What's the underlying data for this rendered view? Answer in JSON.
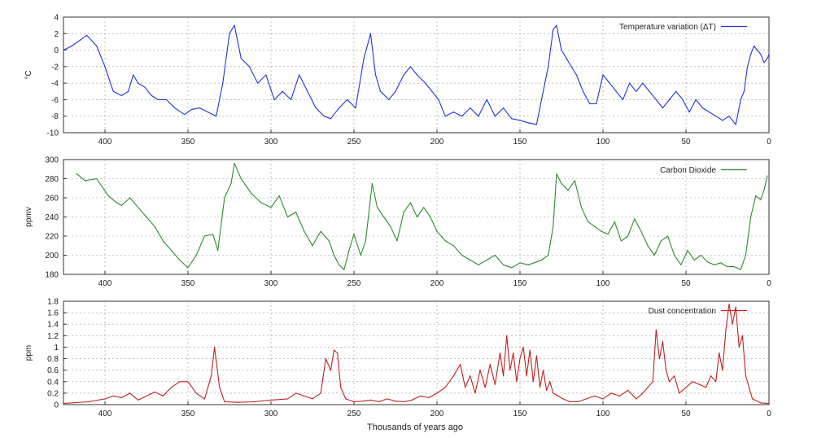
{
  "chart_data": [
    {
      "type": "line",
      "ylabel": "°C",
      "legend": "Temperature variation (ΔT)",
      "color": "#2233dd",
      "xlim": [
        0,
        425
      ],
      "x_reversed": true,
      "ylim": [
        -10,
        4
      ],
      "yticks": [
        4,
        2,
        0,
        -2,
        -4,
        -6,
        -8,
        -10
      ],
      "xticks": [
        400,
        350,
        300,
        250,
        200,
        150,
        100,
        50,
        0
      ],
      "grid": true,
      "legend_position": "top-right",
      "series": [
        {
          "x": [
            425,
            420,
            415,
            411,
            405,
            400,
            395,
            390,
            386,
            383,
            380,
            376,
            372,
            368,
            363,
            358,
            352,
            348,
            343,
            338,
            333,
            329,
            325,
            322,
            318,
            313,
            308,
            303,
            298,
            293,
            288,
            283,
            278,
            273,
            268,
            264,
            259,
            254,
            249,
            244,
            240,
            237,
            234,
            229,
            225,
            220,
            216,
            212,
            207,
            203,
            199,
            195,
            190,
            185,
            180,
            175,
            170,
            165,
            160,
            155,
            150,
            145,
            140,
            137,
            133,
            130,
            128,
            125,
            122,
            119,
            116,
            112,
            108,
            104,
            100,
            96,
            92,
            88,
            84,
            80,
            76,
            72,
            68,
            64,
            60,
            56,
            52,
            48,
            44,
            40,
            36,
            32,
            28,
            24,
            20,
            17,
            15,
            13,
            11,
            9,
            7,
            5,
            3,
            1,
            0
          ],
          "y": [
            0,
            0.5,
            1.2,
            1.8,
            0.5,
            -2,
            -5,
            -5.5,
            -5,
            -3,
            -4,
            -4.5,
            -5.5,
            -6,
            -6,
            -7,
            -7.8,
            -7.2,
            -7,
            -7.5,
            -8,
            -4,
            2,
            3,
            -1,
            -2,
            -4,
            -3,
            -6,
            -5,
            -6,
            -3,
            -5,
            -7,
            -8,
            -8.3,
            -7,
            -6,
            -7,
            -1,
            2,
            -3,
            -5,
            -6,
            -5,
            -3,
            -2,
            -3,
            -4,
            -5,
            -6,
            -8,
            -7.5,
            -8,
            -7,
            -8,
            -6,
            -8,
            -7,
            -8.3,
            -8.5,
            -8.8,
            -9,
            -6,
            -2,
            2.5,
            3,
            0,
            -1,
            -2,
            -3,
            -5,
            -6.5,
            -6.5,
            -3,
            -4,
            -5,
            -6,
            -4,
            -5,
            -4,
            -5,
            -6,
            -7,
            -6,
            -5,
            -6,
            -7.5,
            -6,
            -7,
            -7.5,
            -8,
            -8.5,
            -8,
            -9,
            -6,
            -5,
            -2,
            -0.5,
            0.5,
            0,
            -0.5,
            -1.5,
            -1,
            -0.5
          ]
        }
      ]
    },
    {
      "type": "line",
      "ylabel": "ppmv",
      "legend": "Carbon Dioxide",
      "color": "#2e8b2e",
      "xlim": [
        0,
        425
      ],
      "x_reversed": true,
      "ylim": [
        180,
        300
      ],
      "yticks": [
        300,
        280,
        260,
        240,
        220,
        200,
        180
      ],
      "xticks": [
        400,
        350,
        300,
        250,
        200,
        150,
        100,
        50,
        0
      ],
      "grid": true,
      "legend_position": "top-right",
      "series": [
        {
          "x": [
            417,
            412,
            405,
            398,
            393,
            390,
            385,
            380,
            375,
            370,
            365,
            360,
            355,
            350,
            345,
            340,
            335,
            332,
            328,
            324,
            322,
            318,
            312,
            306,
            300,
            295,
            290,
            285,
            280,
            275,
            270,
            265,
            262,
            259,
            256,
            253,
            250,
            246,
            243,
            239,
            236,
            232,
            228,
            224,
            220,
            216,
            212,
            208,
            204,
            200,
            195,
            190,
            185,
            180,
            175,
            170,
            165,
            160,
            155,
            150,
            145,
            140,
            137,
            133,
            130,
            128,
            125,
            121,
            117,
            113,
            109,
            105,
            101,
            97,
            93,
            89,
            85,
            81,
            77,
            73,
            69,
            65,
            61,
            57,
            53,
            49,
            45,
            41,
            37,
            33,
            29,
            25,
            21,
            17,
            14,
            11,
            8,
            5,
            3,
            1
          ],
          "y": [
            285,
            278,
            280,
            262,
            255,
            252,
            260,
            250,
            240,
            230,
            215,
            205,
            195,
            187,
            200,
            220,
            222,
            205,
            260,
            275,
            296,
            280,
            265,
            255,
            250,
            262,
            240,
            245,
            225,
            210,
            225,
            215,
            200,
            190,
            185,
            205,
            222,
            200,
            215,
            275,
            250,
            240,
            230,
            215,
            245,
            255,
            240,
            250,
            240,
            225,
            215,
            210,
            200,
            195,
            190,
            195,
            200,
            190,
            187,
            192,
            190,
            193,
            195,
            200,
            230,
            285,
            275,
            268,
            278,
            250,
            235,
            230,
            225,
            222,
            235,
            215,
            220,
            238,
            225,
            210,
            200,
            215,
            220,
            200,
            190,
            205,
            195,
            200,
            193,
            190,
            192,
            188,
            188,
            185,
            200,
            240,
            262,
            258,
            268,
            283
          ]
        }
      ]
    },
    {
      "type": "line",
      "ylabel": "ppm",
      "legend": "Dust concentration",
      "xlabel": "Thousands of years ago",
      "color": "#c02020",
      "xlim": [
        0,
        425
      ],
      "x_reversed": true,
      "ylim": [
        0,
        1.8
      ],
      "yticks": [
        1.8,
        1.6,
        1.4,
        1.2,
        1,
        0.8,
        0.6,
        0.4,
        0.2,
        0
      ],
      "xticks": [
        400,
        350,
        300,
        250,
        200,
        150,
        100,
        50,
        0
      ],
      "grid": true,
      "legend_position": "top-right",
      "series": [
        {
          "x": [
            425,
            410,
            400,
            395,
            390,
            385,
            380,
            375,
            370,
            365,
            360,
            355,
            350,
            345,
            340,
            336,
            334,
            331,
            328,
            320,
            310,
            300,
            290,
            285,
            280,
            275,
            270,
            267,
            264,
            262,
            260,
            258,
            255,
            250,
            245,
            240,
            235,
            230,
            225,
            220,
            215,
            210,
            205,
            200,
            195,
            190,
            186,
            183,
            180,
            177,
            174,
            171,
            168,
            165,
            162,
            160,
            158,
            156,
            154,
            152,
            150,
            148,
            146,
            144,
            142,
            140,
            138,
            136,
            134,
            132,
            130,
            127,
            124,
            120,
            115,
            110,
            105,
            100,
            95,
            90,
            85,
            80,
            76,
            73,
            70,
            68,
            66,
            64,
            62,
            60,
            57,
            54,
            50,
            46,
            42,
            38,
            35,
            32,
            30,
            28,
            26,
            24,
            22,
            20,
            18,
            16,
            14,
            10,
            5,
            0
          ],
          "y": [
            0.02,
            0.05,
            0.1,
            0.15,
            0.12,
            0.2,
            0.08,
            0.15,
            0.22,
            0.15,
            0.3,
            0.4,
            0.4,
            0.2,
            0.1,
            0.5,
            1.0,
            0.3,
            0.05,
            0.04,
            0.05,
            0.08,
            0.1,
            0.2,
            0.15,
            0.1,
            0.2,
            0.8,
            0.6,
            0.95,
            0.9,
            0.3,
            0.1,
            0.05,
            0.06,
            0.08,
            0.05,
            0.1,
            0.06,
            0.05,
            0.08,
            0.15,
            0.12,
            0.2,
            0.3,
            0.5,
            0.7,
            0.3,
            0.5,
            0.2,
            0.6,
            0.3,
            0.7,
            0.35,
            0.9,
            0.5,
            1.2,
            0.6,
            0.9,
            0.4,
            0.8,
            1.0,
            0.5,
            0.95,
            0.4,
            0.85,
            0.3,
            0.6,
            0.25,
            0.4,
            0.2,
            0.15,
            0.1,
            0.05,
            0.05,
            0.1,
            0.15,
            0.1,
            0.2,
            0.15,
            0.25,
            0.1,
            0.2,
            0.3,
            0.4,
            1.3,
            0.8,
            1.1,
            0.6,
            0.4,
            0.5,
            0.2,
            0.3,
            0.4,
            0.35,
            0.3,
            0.5,
            0.4,
            0.9,
            0.6,
            1.3,
            1.75,
            1.4,
            1.7,
            1.0,
            1.2,
            0.5,
            0.1,
            0.03,
            0.02
          ]
        }
      ]
    }
  ]
}
